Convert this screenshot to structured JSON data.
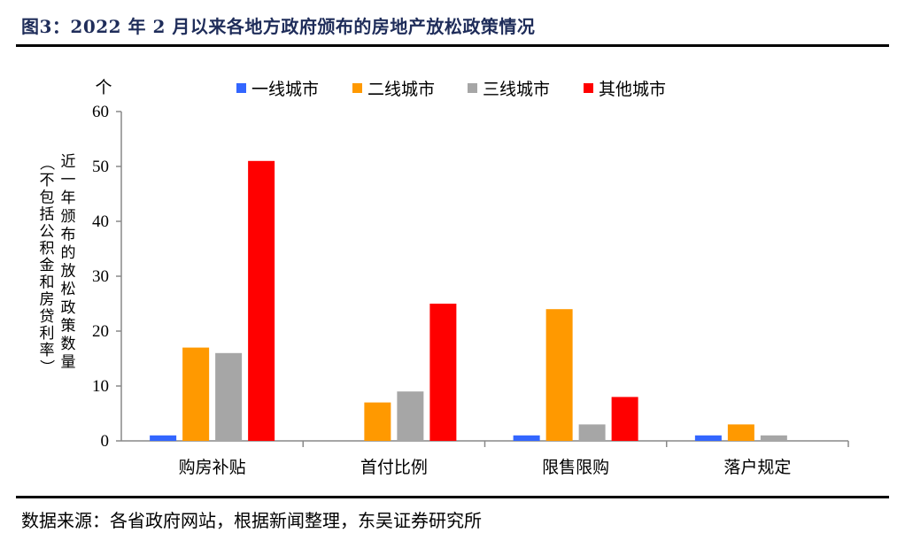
{
  "figure": {
    "title": "图3：2022 年 2 月以来各地方政府颁布的房地产放松政策情况",
    "source": "数据来源：各省政府网站，根据新闻整理，东吴证券研究所"
  },
  "chart_data": {
    "type": "bar",
    "categories": [
      "购房补贴",
      "首付比例",
      "限售限购",
      "落户规定"
    ],
    "series": [
      {
        "name": "一线城市",
        "color": "#3366ff",
        "values": [
          1,
          0,
          1,
          1
        ]
      },
      {
        "name": "二线城市",
        "color": "#ff9900",
        "values": [
          17,
          7,
          24,
          3
        ]
      },
      {
        "name": "三线城市",
        "color": "#a6a6a6",
        "values": [
          16,
          9,
          3,
          1
        ]
      },
      {
        "name": "其他城市",
        "color": "#ff0000",
        "values": [
          51,
          25,
          8,
          0
        ]
      }
    ],
    "ylim": [
      0,
      60
    ],
    "yticks": [
      0,
      10,
      20,
      30,
      40,
      50,
      60
    ],
    "yunit": "个",
    "ylabel_main": "近一年颁布的放松政策数量",
    "ylabel_note": "（不包括公积金和房贷利率）",
    "legend_position": "top",
    "grid": false
  }
}
